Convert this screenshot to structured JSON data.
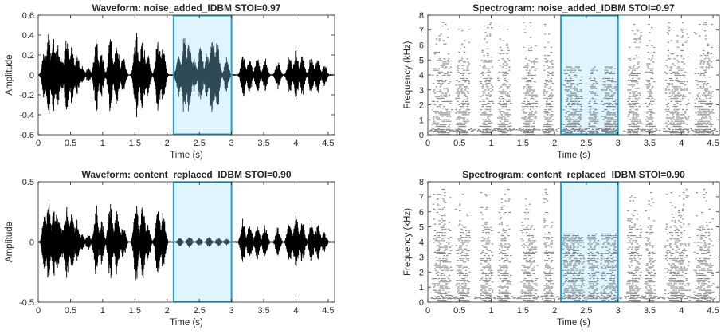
{
  "chart_data": [
    {
      "type": "line",
      "panel": "waveform",
      "title": "Waveform: noise_added_IDBM  STOI=0.97",
      "xlabel": "Time (s)",
      "ylabel": "Amplitude",
      "xlim": [
        0,
        4.6
      ],
      "ylim": [
        -0.6,
        0.6
      ],
      "xticks": [
        "0",
        "0.5",
        "1",
        "1.5",
        "2",
        "2.5",
        "3",
        "3.5",
        "4",
        "4.5"
      ],
      "yticks": [
        "-0.6",
        "-0.4",
        "-0.2",
        "0",
        "0.2",
        "0.4",
        "0.6"
      ],
      "highlight": {
        "x0": 2.1,
        "x1": 3.0
      },
      "envelope": [
        {
          "t": 0.1,
          "amp": 0.3
        },
        {
          "t": 0.16,
          "amp": 0.45
        },
        {
          "t": 0.24,
          "amp": 0.4
        },
        {
          "t": 0.3,
          "amp": 0.33
        },
        {
          "t": 0.36,
          "amp": 0.2
        },
        {
          "t": 0.44,
          "amp": 0.4
        },
        {
          "t": 0.52,
          "amp": 0.36
        },
        {
          "t": 0.6,
          "amp": 0.24
        },
        {
          "t": 0.68,
          "amp": 0.1
        },
        {
          "t": 0.78,
          "amp": 0.08
        },
        {
          "t": 0.9,
          "amp": 0.4
        },
        {
          "t": 0.98,
          "amp": 0.25
        },
        {
          "t": 1.12,
          "amp": 0.42
        },
        {
          "t": 1.22,
          "amp": 0.36
        },
        {
          "t": 1.32,
          "amp": 0.2
        },
        {
          "t": 1.52,
          "amp": 0.46
        },
        {
          "t": 1.62,
          "amp": 0.43
        },
        {
          "t": 1.7,
          "amp": 0.22
        },
        {
          "t": 1.86,
          "amp": 0.42
        },
        {
          "t": 1.94,
          "amp": 0.3
        },
        {
          "t": 2.18,
          "amp": 0.25
        },
        {
          "t": 2.26,
          "amp": 0.44
        },
        {
          "t": 2.34,
          "amp": 0.4
        },
        {
          "t": 2.42,
          "amp": 0.18
        },
        {
          "t": 2.52,
          "amp": 0.32
        },
        {
          "t": 2.62,
          "amp": 0.26
        },
        {
          "t": 2.7,
          "amp": 0.5
        },
        {
          "t": 2.78,
          "amp": 0.38
        },
        {
          "t": 2.92,
          "amp": 0.18
        },
        {
          "t": 3.18,
          "amp": 0.24
        },
        {
          "t": 3.28,
          "amp": 0.2
        },
        {
          "t": 3.4,
          "amp": 0.2
        },
        {
          "t": 3.52,
          "amp": 0.18
        },
        {
          "t": 3.72,
          "amp": 0.15
        },
        {
          "t": 3.9,
          "amp": 0.22
        },
        {
          "t": 4.0,
          "amp": 0.28
        },
        {
          "t": 4.1,
          "amp": 0.22
        },
        {
          "t": 4.24,
          "amp": 0.22
        },
        {
          "t": 4.34,
          "amp": 0.2
        },
        {
          "t": 4.44,
          "amp": 0.12
        }
      ]
    },
    {
      "type": "heatmap",
      "panel": "spectrogram",
      "title": "Spectrogram: noise_added_IDBM  STOI=0.97",
      "xlabel": "Time (s)",
      "ylabel": "Frequency (kHz)",
      "xlim": [
        0,
        4.6
      ],
      "ylim": [
        0,
        8
      ],
      "xticks": [
        "0",
        "0.5",
        "1",
        "1.5",
        "2",
        "2.5",
        "3",
        "3.5",
        "4",
        "4.5"
      ],
      "yticks": [
        "0",
        "1",
        "2",
        "3",
        "4",
        "5",
        "6",
        "7",
        "8"
      ],
      "highlight": {
        "x0": 2.1,
        "x1": 3.0
      }
    },
    {
      "type": "line",
      "panel": "waveform",
      "title": "Waveform: content_replaced_IDBM  STOI=0.90",
      "xlabel": "Time (s)",
      "ylabel": "Amplitude",
      "xlim": [
        0,
        4.6
      ],
      "ylim": [
        -0.5,
        0.5
      ],
      "xticks": [
        "0",
        "0.5",
        "1",
        "1.5",
        "2",
        "2.5",
        "3",
        "3.5",
        "4",
        "4.5"
      ],
      "yticks": [
        "-0.5",
        "0",
        "0.5"
      ],
      "highlight": {
        "x0": 2.1,
        "x1": 3.0
      },
      "envelope": [
        {
          "t": 0.1,
          "amp": 0.25
        },
        {
          "t": 0.16,
          "amp": 0.36
        },
        {
          "t": 0.24,
          "amp": 0.32
        },
        {
          "t": 0.3,
          "amp": 0.28
        },
        {
          "t": 0.36,
          "amp": 0.16
        },
        {
          "t": 0.44,
          "amp": 0.33
        },
        {
          "t": 0.52,
          "amp": 0.3
        },
        {
          "t": 0.6,
          "amp": 0.2
        },
        {
          "t": 0.68,
          "amp": 0.08
        },
        {
          "t": 0.78,
          "amp": 0.07
        },
        {
          "t": 0.9,
          "amp": 0.33
        },
        {
          "t": 0.98,
          "amp": 0.2
        },
        {
          "t": 1.12,
          "amp": 0.35
        },
        {
          "t": 1.22,
          "amp": 0.3
        },
        {
          "t": 1.32,
          "amp": 0.17
        },
        {
          "t": 1.52,
          "amp": 0.4
        },
        {
          "t": 1.62,
          "amp": 0.36
        },
        {
          "t": 1.7,
          "amp": 0.18
        },
        {
          "t": 1.86,
          "amp": 0.36
        },
        {
          "t": 1.94,
          "amp": 0.25
        },
        {
          "t": 2.2,
          "amp": 0.04
        },
        {
          "t": 2.35,
          "amp": 0.05
        },
        {
          "t": 2.5,
          "amp": 0.04
        },
        {
          "t": 2.65,
          "amp": 0.05
        },
        {
          "t": 2.8,
          "amp": 0.04
        },
        {
          "t": 2.92,
          "amp": 0.03
        },
        {
          "t": 3.18,
          "amp": 0.2
        },
        {
          "t": 3.28,
          "amp": 0.17
        },
        {
          "t": 3.4,
          "amp": 0.17
        },
        {
          "t": 3.52,
          "amp": 0.15
        },
        {
          "t": 3.72,
          "amp": 0.13
        },
        {
          "t": 3.9,
          "amp": 0.19
        },
        {
          "t": 4.0,
          "amp": 0.25
        },
        {
          "t": 4.1,
          "amp": 0.19
        },
        {
          "t": 4.24,
          "amp": 0.19
        },
        {
          "t": 4.34,
          "amp": 0.17
        },
        {
          "t": 4.44,
          "amp": 0.1
        }
      ]
    },
    {
      "type": "heatmap",
      "panel": "spectrogram",
      "title": "Spectrogram: content_replaced_IDBM  STOI=0.90",
      "xlabel": "Time (s)",
      "ylabel": "Frequency (kHz)",
      "xlim": [
        0,
        4.6
      ],
      "ylim": [
        0,
        8
      ],
      "xticks": [
        "0",
        "0.5",
        "1",
        "1.5",
        "2",
        "2.5",
        "3",
        "3.5",
        "4",
        "4.5"
      ],
      "yticks": [
        "0",
        "1",
        "2",
        "3",
        "4",
        "5",
        "6",
        "7",
        "8"
      ],
      "highlight": {
        "x0": 2.1,
        "x1": 3.0
      }
    }
  ],
  "colors": {
    "waveform": "#000000",
    "waveform_in_highlight": "#2f4a54",
    "highlight_fill": "#dff4fd",
    "highlight_stroke": "#1ea4cc",
    "axis": "#262626"
  }
}
